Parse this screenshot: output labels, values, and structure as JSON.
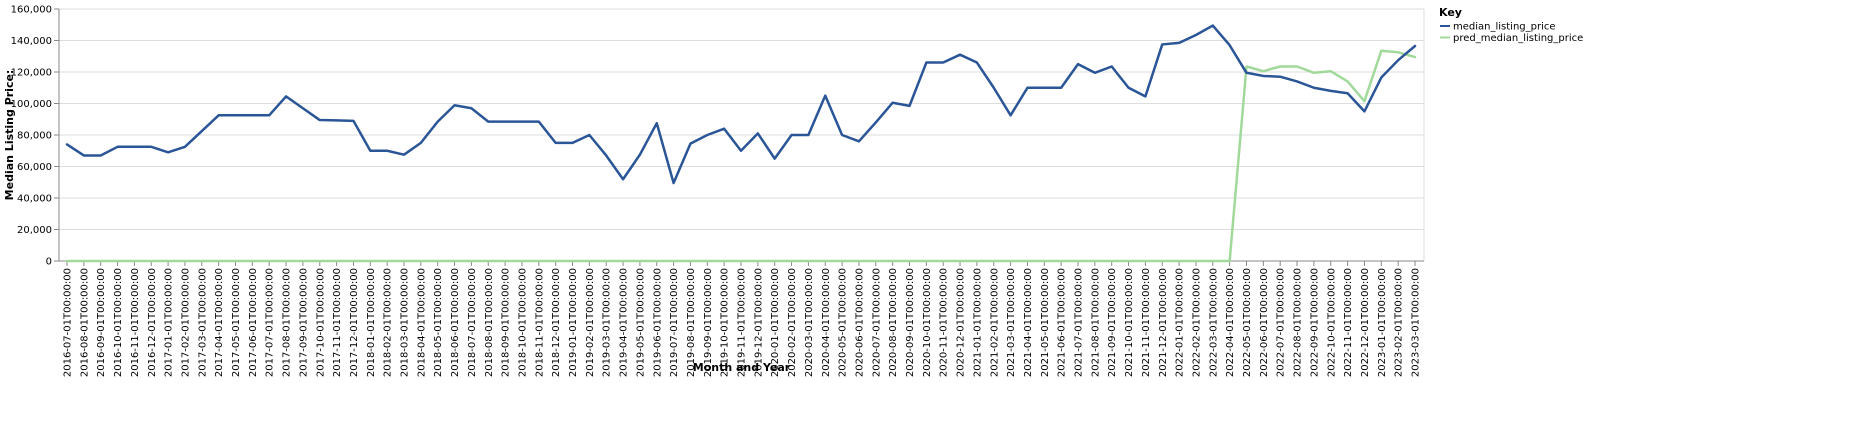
{
  "chart_data": {
    "type": "line",
    "xlabel": "Month and Year",
    "ylabel": "Median Listing Price:",
    "ylim": [
      0,
      160000
    ],
    "yticks": [
      "0",
      "20,000",
      "40,000",
      "60,000",
      "80,000",
      "100,000",
      "120,000",
      "140,000",
      "160,000"
    ],
    "grid": "horizontal",
    "legend_title": "Key",
    "legend_position": "top-right",
    "categories": [
      "2016-07-01T00:00:00",
      "2016-08-01T00:00:00",
      "2016-09-01T00:00:00",
      "2016-10-01T00:00:00",
      "2016-11-01T00:00:00",
      "2016-12-01T00:00:00",
      "2017-01-01T00:00:00",
      "2017-02-01T00:00:00",
      "2017-03-01T00:00:00",
      "2017-04-01T00:00:00",
      "2017-05-01T00:00:00",
      "2017-06-01T00:00:00",
      "2017-07-01T00:00:00",
      "2017-08-01T00:00:00",
      "2017-09-01T00:00:00",
      "2017-10-01T00:00:00",
      "2017-11-01T00:00:00",
      "2017-12-01T00:00:00",
      "2018-01-01T00:00:00",
      "2018-02-01T00:00:00",
      "2018-03-01T00:00:00",
      "2018-04-01T00:00:00",
      "2018-05-01T00:00:00",
      "2018-06-01T00:00:00",
      "2018-07-01T00:00:00",
      "2018-08-01T00:00:00",
      "2018-09-01T00:00:00",
      "2018-10-01T00:00:00",
      "2018-11-01T00:00:00",
      "2018-12-01T00:00:00",
      "2019-01-01T00:00:00",
      "2019-02-01T00:00:00",
      "2019-03-01T00:00:00",
      "2019-04-01T00:00:00",
      "2019-05-01T00:00:00",
      "2019-06-01T00:00:00",
      "2019-07-01T00:00:00",
      "2019-08-01T00:00:00",
      "2019-09-01T00:00:00",
      "2019-10-01T00:00:00",
      "2019-11-01T00:00:00",
      "2019-12-01T00:00:00",
      "2020-01-01T00:00:00",
      "2020-02-01T00:00:00",
      "2020-03-01T00:00:00",
      "2020-04-01T00:00:00",
      "2020-05-01T00:00:00",
      "2020-06-01T00:00:00",
      "2020-07-01T00:00:00",
      "2020-08-01T00:00:00",
      "2020-09-01T00:00:00",
      "2020-10-01T00:00:00",
      "2020-11-01T00:00:00",
      "2020-12-01T00:00:00",
      "2021-01-01T00:00:00",
      "2021-02-01T00:00:00",
      "2021-03-01T00:00:00",
      "2021-04-01T00:00:00",
      "2021-05-01T00:00:00",
      "2021-06-01T00:00:00",
      "2021-07-01T00:00:00",
      "2021-08-01T00:00:00",
      "2021-09-01T00:00:00",
      "2021-10-01T00:00:00",
      "2021-11-01T00:00:00",
      "2021-12-01T00:00:00",
      "2022-01-01T00:00:00",
      "2022-02-01T00:00:00",
      "2022-03-01T00:00:00",
      "2022-04-01T00:00:00",
      "2022-05-01T00:00:00",
      "2022-06-01T00:00:00",
      "2022-07-01T00:00:00",
      "2022-08-01T00:00:00",
      "2022-09-01T00:00:00",
      "2022-10-01T00:00:00",
      "2022-11-01T00:00:00",
      "2022-12-01T00:00:00",
      "2023-01-01T00:00:00",
      "2023-02-01T00:00:00",
      "2023-03-01T00:00:00"
    ],
    "series": [
      {
        "name": "median_listing_price",
        "color": "#2a5597",
        "values": [
          74000,
          67000,
          67000,
          72500,
          72500,
          72500,
          69000,
          72500,
          82500,
          92500,
          92500,
          92500,
          92500,
          104500,
          97000,
          89500,
          89300,
          89000,
          70000,
          70000,
          67500,
          75000,
          88500,
          98900,
          97000,
          88500,
          88500,
          88500,
          88500,
          75000,
          75000,
          80000,
          67000,
          51900,
          67500,
          87500,
          49500,
          74500,
          80000,
          84000,
          70000,
          81000,
          65000,
          80000,
          80000,
          105000,
          80000,
          76000,
          88000,
          100500,
          98500,
          126000,
          126000,
          131000,
          126000,
          110000,
          92500,
          110000,
          110000,
          110000,
          125000,
          119500,
          123500,
          110000,
          104500,
          137500,
          138500,
          143500,
          149500,
          137000,
          119500,
          117500,
          117000,
          114000,
          110000,
          108000,
          106500,
          95000,
          116500,
          127500,
          136500
        ]
      },
      {
        "name": "pred_median_listing_price",
        "color": "#a1d99b",
        "values": [
          0,
          0,
          0,
          0,
          0,
          0,
          0,
          0,
          0,
          0,
          0,
          0,
          0,
          0,
          0,
          0,
          0,
          0,
          0,
          0,
          0,
          0,
          0,
          0,
          0,
          0,
          0,
          0,
          0,
          0,
          0,
          0,
          0,
          0,
          0,
          0,
          0,
          0,
          0,
          0,
          0,
          0,
          0,
          0,
          0,
          0,
          0,
          0,
          0,
          0,
          0,
          0,
          0,
          0,
          0,
          0,
          0,
          0,
          0,
          0,
          0,
          0,
          0,
          0,
          0,
          0,
          0,
          0,
          0,
          0,
          123500,
          120500,
          123500,
          123500,
          119500,
          120500,
          114000,
          101500,
          133500,
          132500,
          129500
        ]
      }
    ]
  }
}
